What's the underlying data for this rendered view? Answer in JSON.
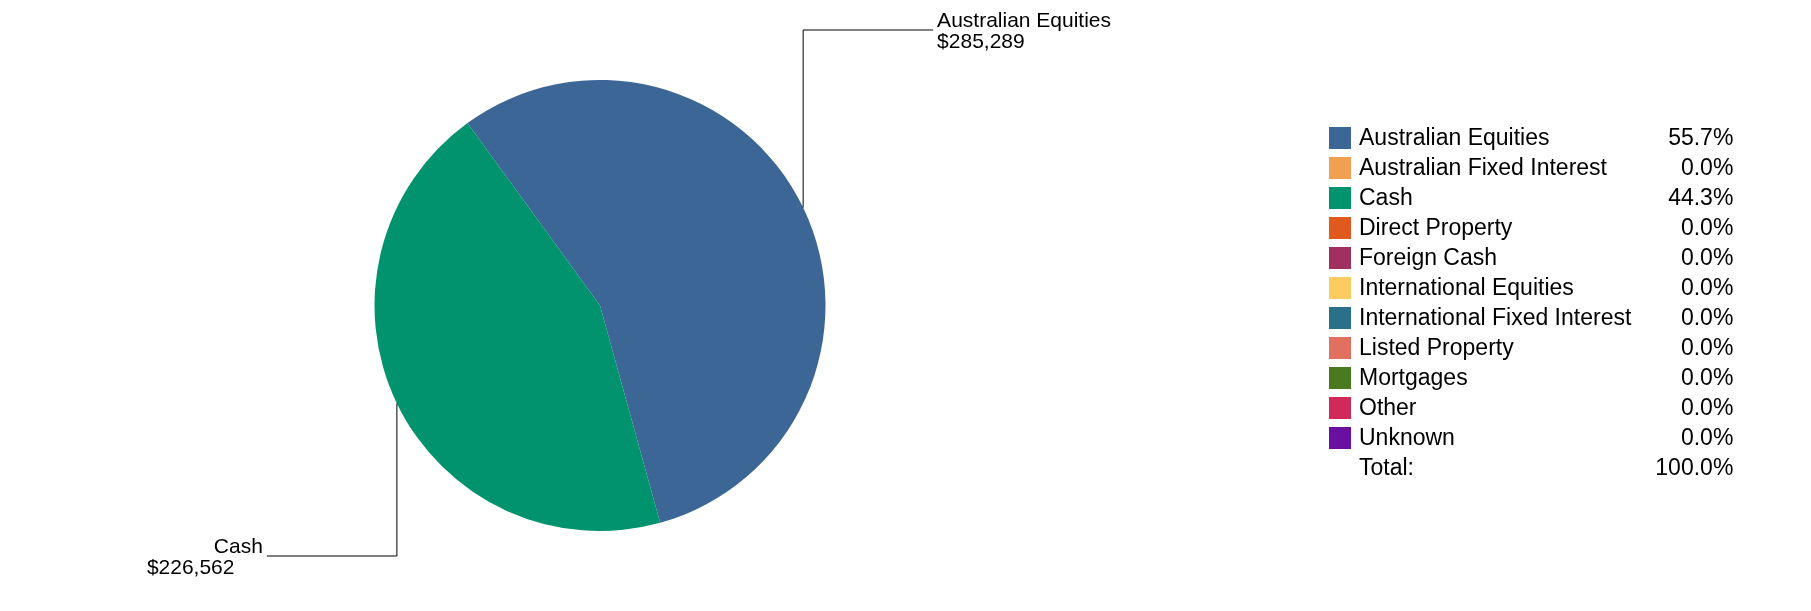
{
  "chart_data": {
    "type": "pie",
    "categories": [
      "Australian Equities",
      "Australian Fixed Interest",
      "Cash",
      "Direct Property",
      "Foreign Cash",
      "International Equities",
      "International Fixed Interest",
      "Listed Property",
      "Mortgages",
      "Other",
      "Unknown"
    ],
    "values": [
      55.7,
      0,
      44.3,
      0,
      0,
      0,
      0,
      0,
      0,
      0,
      0
    ],
    "value_labels": [
      "55.7%",
      "0.0%",
      "44.3%",
      "0.0%",
      "0.0%",
      "0.0%",
      "0.0%",
      "0.0%",
      "0.0%",
      "0.0%",
      "0.0%"
    ],
    "colors": [
      "#3b6696",
      "#f0a050",
      "#00936e",
      "#e05a20",
      "#a03060",
      "#fccc60",
      "#2a7088",
      "#e07060",
      "#4a7a20",
      "#d02a5a",
      "#6a10a0"
    ],
    "annotations": [
      {
        "text": "$285,289",
        "x": "Australian Equities"
      },
      {
        "text": "$226,562",
        "x": "Cash"
      },
      "Total:"
    ],
    "totals": [
      "100.0%"
    ],
    "legend": "right"
  }
}
